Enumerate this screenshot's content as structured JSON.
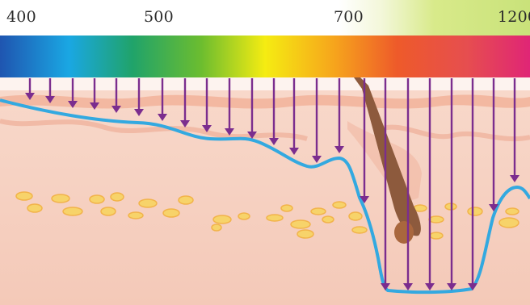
{
  "wavelength_labels": [
    "400",
    "500",
    "700",
    "1200"
  ],
  "colors": {
    "spectrum": [
      "#1f55b0",
      "#1aa7e3",
      "#20a36a",
      "#6cbd2f",
      "#f5ec12",
      "#f6a51c",
      "#ee5a2a",
      "#e64e4f",
      "#e02576"
    ],
    "arrow": "#7b2d8e",
    "skin_boundary": "#33a9e0",
    "dermis": "#f6d3c4",
    "epidermis": "#f2b9a3",
    "hair": "#8d5a3d",
    "fat_cells": "#f7d36a"
  },
  "icons": [
    "down-arrow-icon",
    "hair-follicle-icon",
    "fat-cell-icon"
  ]
}
